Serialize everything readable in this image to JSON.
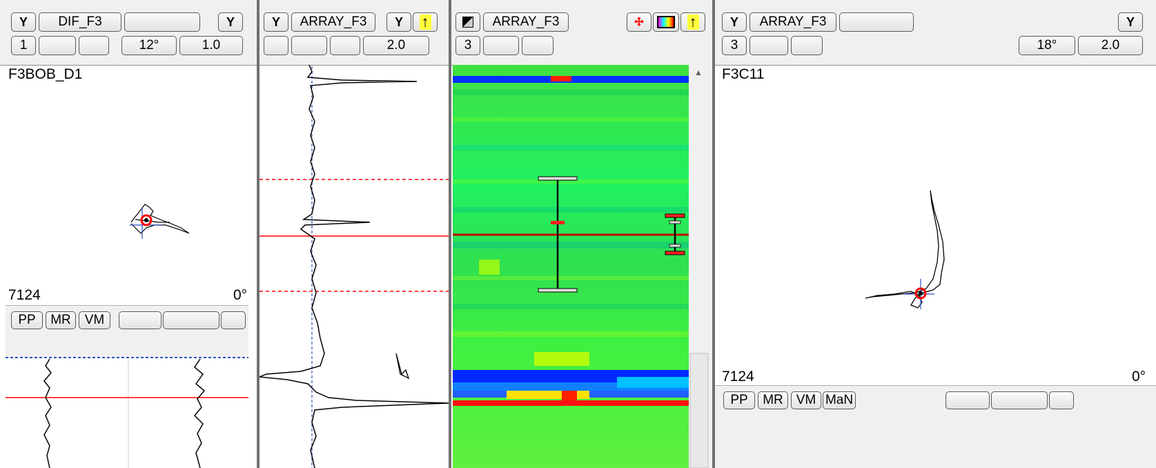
{
  "panel1": {
    "filter_icon_left": "Y",
    "channel": "DIF_F3",
    "filter_icon_right": "Y",
    "row2": [
      "1",
      "",
      "",
      "12°",
      "1.0"
    ],
    "trace_name": "F3BOB_D1",
    "depth": "7124",
    "angle": "0°",
    "modes": [
      "PP",
      "MR",
      "VM"
    ]
  },
  "panel2": {
    "filter_icon_left": "Y",
    "channel": "ARRAY_F3",
    "filter_icon_right": "Y",
    "arrow": "↑",
    "row2": [
      "",
      "",
      "",
      "2.0"
    ]
  },
  "panel3": {
    "channel": "ARRAY_F3",
    "arrow": "↑",
    "row2": [
      "3",
      "",
      ""
    ],
    "scroll_up": "▲"
  },
  "panel4": {
    "filter_icon_left": "Y",
    "channel": "ARRAY_F3",
    "filter_icon_right": "Y",
    "row2": [
      "3",
      "",
      "",
      "18°",
      "2.0"
    ],
    "trace_name": "F3C11",
    "depth": "7124",
    "angle": "0°",
    "modes": [
      "PP",
      "MR",
      "VM",
      "MaN"
    ]
  },
  "colors": {
    "marker_red": "#ff0000",
    "heatmap_green": "#00ff40",
    "heatmap_blue": "#0020ff",
    "highlight_yellow": "#ffff3c"
  }
}
